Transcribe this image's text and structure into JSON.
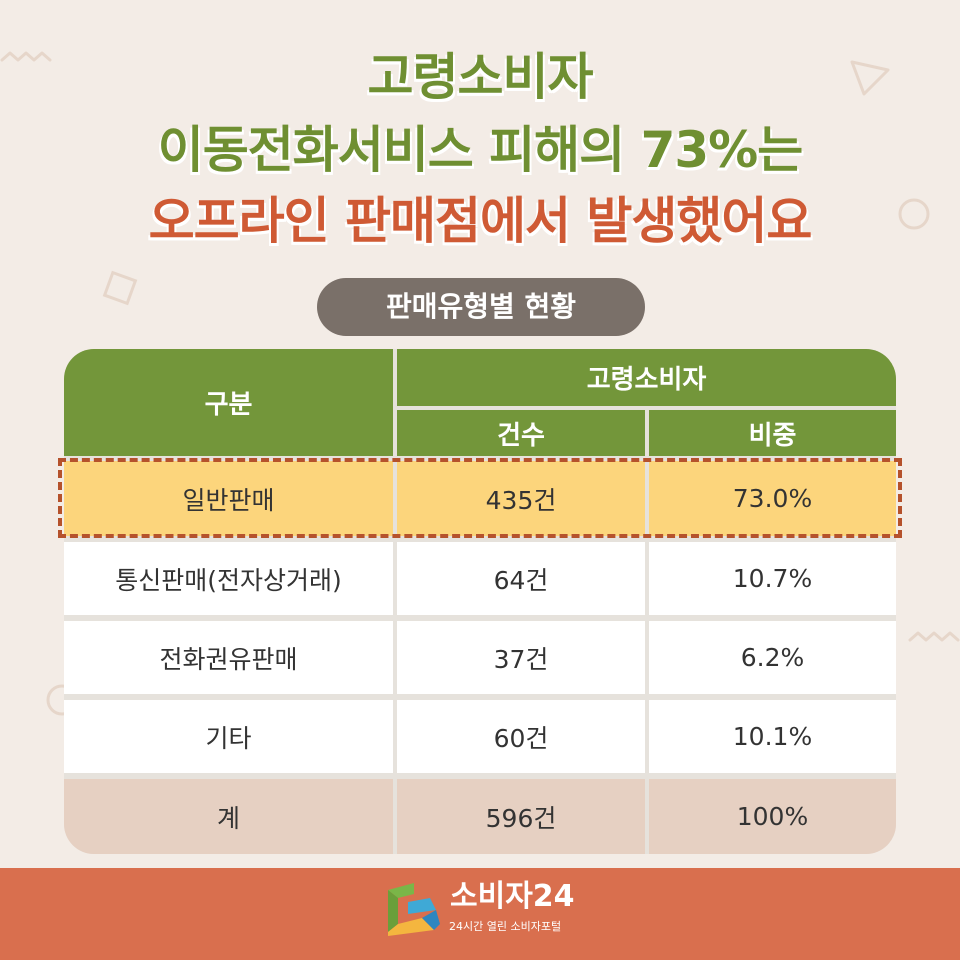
{
  "title": {
    "line1": "고령소비자",
    "line2": "이동전화서비스 피해의 73%는",
    "line3": "오프라인 판매점에서 발생했어요"
  },
  "subtitle": "판매유형별 현황",
  "table": {
    "header": {
      "category": "구분",
      "group": "고령소비자",
      "count": "건수",
      "ratio": "비중"
    },
    "rows": [
      {
        "label": "일반판매",
        "count": "435건",
        "ratio": "73.0%"
      },
      {
        "label": "통신판매(전자상거래)",
        "count": "64건",
        "ratio": "10.7%"
      },
      {
        "label": "전화권유판매",
        "count": "37건",
        "ratio": "6.2%"
      },
      {
        "label": "기타",
        "count": "60건",
        "ratio": "10.1%"
      },
      {
        "label": "계",
        "count": "596건",
        "ratio": "100%"
      }
    ]
  },
  "colors": {
    "background": "#f3ece6",
    "title_green": "#6f8f32",
    "title_orange": "#cf5a34",
    "header_green": "#73963a",
    "highlight_yellow": "#fcd57c",
    "highlight_border": "#b5522c",
    "total_row": "#e6d0c2",
    "footer": "#d96f4e",
    "pill": "#7a7069"
  },
  "footer": {
    "logo_icon": "consumer24-logo-icon",
    "brand_name": "소비자24",
    "brand_tagline": "24시간 열린 소비자포털"
  }
}
